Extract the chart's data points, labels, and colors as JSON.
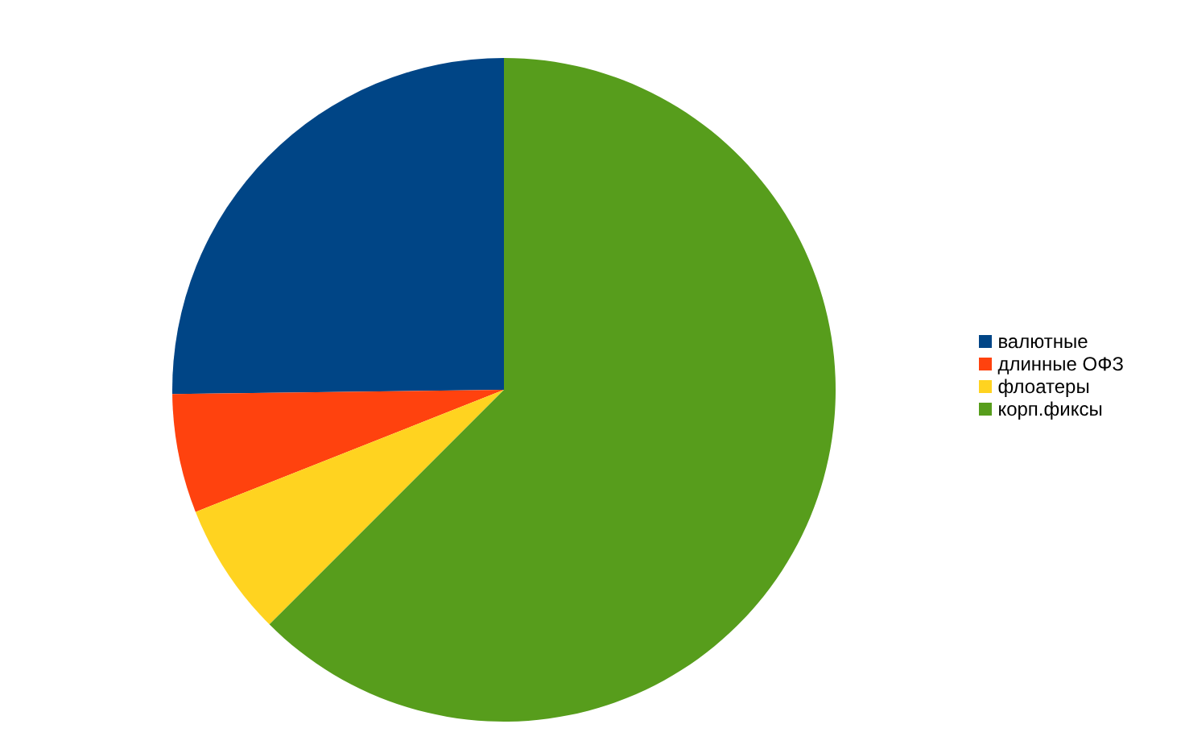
{
  "chart_data": {
    "type": "pie",
    "categories": [
      "валютные",
      "длинные ОФЗ",
      "флоатеры",
      "корп.фиксы"
    ],
    "values": [
      25.2,
      5.8,
      6.5,
      62.5
    ],
    "colors": [
      "#004586",
      "#ff420e",
      "#ffd320",
      "#579d1c"
    ],
    "legend": "right"
  }
}
